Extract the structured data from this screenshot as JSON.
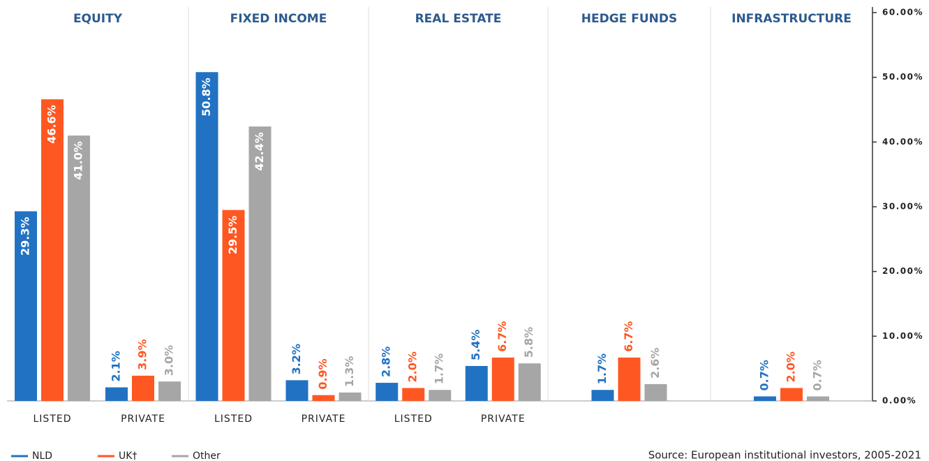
{
  "chart_data": {
    "type": "bar",
    "groups": [
      {
        "name": "EQUITY",
        "span": 2
      },
      {
        "name": "FIXED INCOME",
        "span": 2
      },
      {
        "name": "REAL ESTATE",
        "span": 2
      },
      {
        "name": "HEDGE FUNDS",
        "span": 1
      },
      {
        "name": "INFRASTRUCTURE",
        "span": 1
      }
    ],
    "categories": [
      "LISTED",
      "PRIVATE",
      "LISTED",
      "PRIVATE",
      "LISTED",
      "PRIVATE",
      null,
      null
    ],
    "series": [
      {
        "name": "NLD",
        "color": "#2272c3",
        "values": [
          29.3,
          2.1,
          50.8,
          3.2,
          2.8,
          5.4,
          1.7,
          0.7
        ],
        "value_labels": [
          "29.3%",
          "2.1%",
          "50.8%",
          "3.2%",
          "2.8%",
          "5.4%",
          "1.7%",
          "0.7%"
        ]
      },
      {
        "name": "UK†",
        "color": "#ff5722",
        "values": [
          46.6,
          3.9,
          29.5,
          0.9,
          2.0,
          6.7,
          6.7,
          2.0
        ],
        "value_labels": [
          "46.6%",
          "3.9%",
          "29.5%",
          "0.9%",
          "2.0%",
          "6.7%",
          "6.7%",
          "2.0%"
        ]
      },
      {
        "name": "Other",
        "color": "#a6a6a6",
        "values": [
          41.0,
          3.0,
          42.4,
          1.3,
          1.7,
          5.8,
          2.6,
          0.7
        ],
        "value_labels": [
          "41.0%",
          "3.0%",
          "42.4%",
          "1.3%",
          "1.7%",
          "5.8%",
          "2.6%",
          "0.7%"
        ]
      }
    ],
    "ylim": [
      0,
      60
    ],
    "yticks": [
      {
        "value": 0,
        "label": "0.00%"
      },
      {
        "value": 10,
        "label": "10.00%"
      },
      {
        "value": 20,
        "label": "20.00%"
      },
      {
        "value": 30,
        "label": "30.00%"
      },
      {
        "value": 40,
        "label": "40.00%"
      },
      {
        "value": 50,
        "label": "50.00%"
      },
      {
        "value": 60,
        "label": "60.00%"
      }
    ],
    "source": "Source: European institutional investors, 2005-2021"
  }
}
